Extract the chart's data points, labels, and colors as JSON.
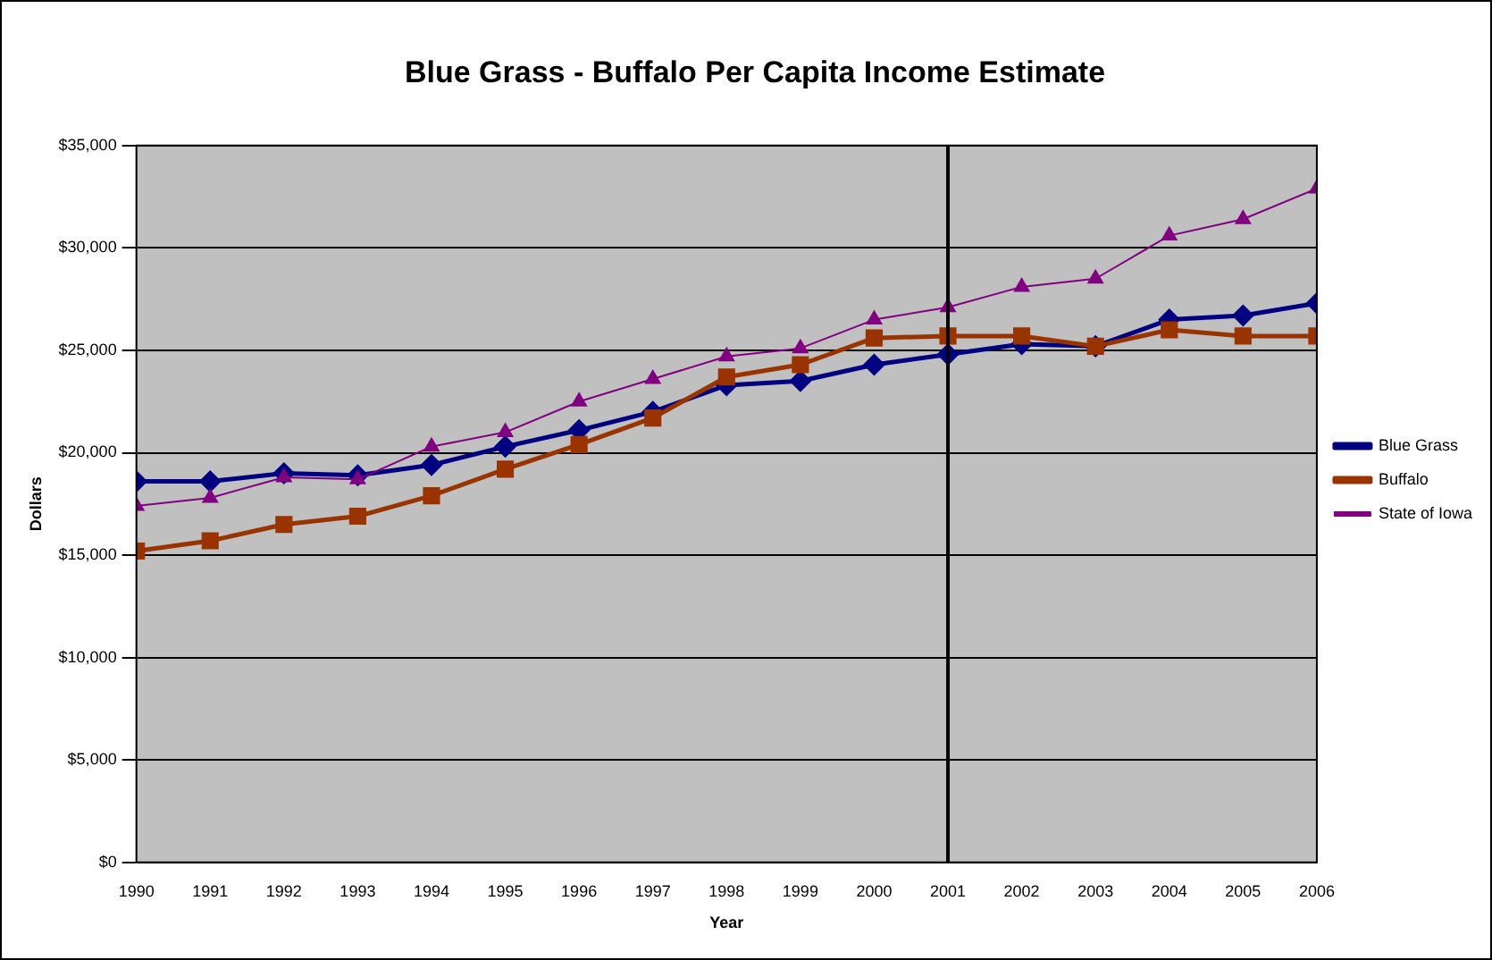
{
  "chart_data": {
    "type": "line",
    "title": "Blue Grass - Buffalo Per Capita Income Estimate",
    "xlabel": "Year",
    "ylabel": "Dollars",
    "x": [
      1990,
      1991,
      1992,
      1993,
      1994,
      1995,
      1996,
      1997,
      1998,
      1999,
      2000,
      2001,
      2002,
      2003,
      2004,
      2005,
      2006
    ],
    "xlim": [
      1990,
      2006
    ],
    "xticks": [
      1990,
      1991,
      1992,
      1993,
      1994,
      1995,
      1996,
      1997,
      1998,
      1999,
      2000,
      2001,
      2002,
      2003,
      2004,
      2005,
      2006
    ],
    "ylim": [
      0,
      35000
    ],
    "yticks": [
      {
        "value": 0,
        "label": "$0"
      },
      {
        "value": 5000,
        "label": "$5,000"
      },
      {
        "value": 10000,
        "label": "$10,000"
      },
      {
        "value": 15000,
        "label": "$15,000"
      },
      {
        "value": 20000,
        "label": "$20,000"
      },
      {
        "value": 25000,
        "label": "$25,000"
      },
      {
        "value": 30000,
        "label": "$30,000"
      },
      {
        "value": 35000,
        "label": "$35,000"
      }
    ],
    "grid": "y",
    "legend": "right",
    "series": [
      {
        "name": "Blue Grass",
        "color": "#000080",
        "marker": "diamond",
        "values": [
          18600,
          18600,
          19000,
          18900,
          19400,
          20300,
          21100,
          22000,
          23300,
          23500,
          24300,
          24800,
          25300,
          25200,
          26500,
          26700,
          27300
        ]
      },
      {
        "name": "Buffalo",
        "color": "#993300",
        "marker": "square",
        "values": [
          15200,
          15700,
          16500,
          16900,
          17900,
          19200,
          20400,
          21700,
          23700,
          24300,
          25600,
          25700,
          25700,
          25200,
          26000,
          25700,
          25700
        ]
      },
      {
        "name": "State of Iowa",
        "color": "#800080",
        "marker": "triangle",
        "values": [
          17400,
          17800,
          18800,
          18700,
          20300,
          21000,
          22500,
          23600,
          24700,
          25100,
          26500,
          27100,
          28100,
          28500,
          30600,
          31400,
          32900
        ]
      }
    ],
    "ref_lines": [
      {
        "axis": "x",
        "value": 2001,
        "color": "#000000"
      }
    ]
  }
}
